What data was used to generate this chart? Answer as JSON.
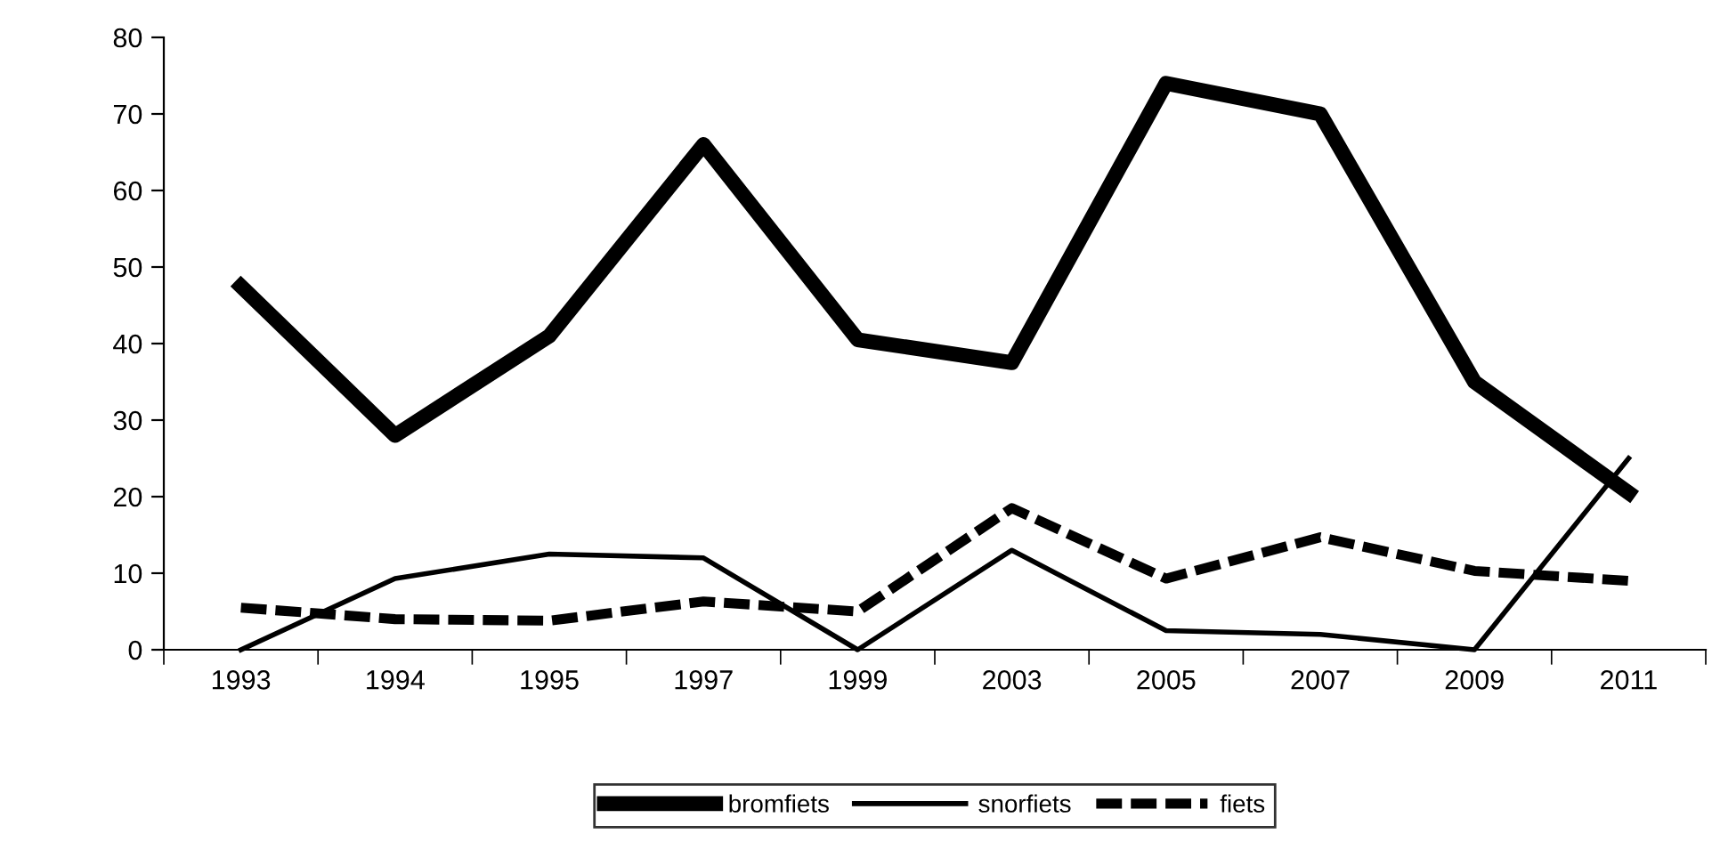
{
  "chart_data": {
    "type": "line",
    "categories": [
      "1993",
      "1994",
      "1995",
      "1997",
      "1999",
      "2003",
      "2005",
      "2007",
      "2009",
      "2011"
    ],
    "series": [
      {
        "name": "bromfiets",
        "color": "#000000",
        "line_style": "solid",
        "values": [
          47.5,
          28,
          41,
          66,
          40.5,
          37.5,
          74,
          70,
          35,
          20.5
        ]
      },
      {
        "name": "snorfiets",
        "color": "#000000",
        "line_style": "solid",
        "values": [
          0,
          9.3,
          12.5,
          12,
          0,
          13,
          2.5,
          2,
          0,
          25
        ]
      },
      {
        "name": "fiets",
        "color": "#000000",
        "line_style": "dashed",
        "values": [
          5.5,
          4,
          3.8,
          6.3,
          5,
          18.5,
          9.3,
          14.7,
          10.3,
          9
        ]
      }
    ],
    "ylim": [
      0,
      80
    ],
    "yticks": [
      0,
      10,
      20,
      30,
      40,
      50,
      60,
      70,
      80
    ],
    "grid": false,
    "legend": "bottom",
    "marker": "none"
  }
}
